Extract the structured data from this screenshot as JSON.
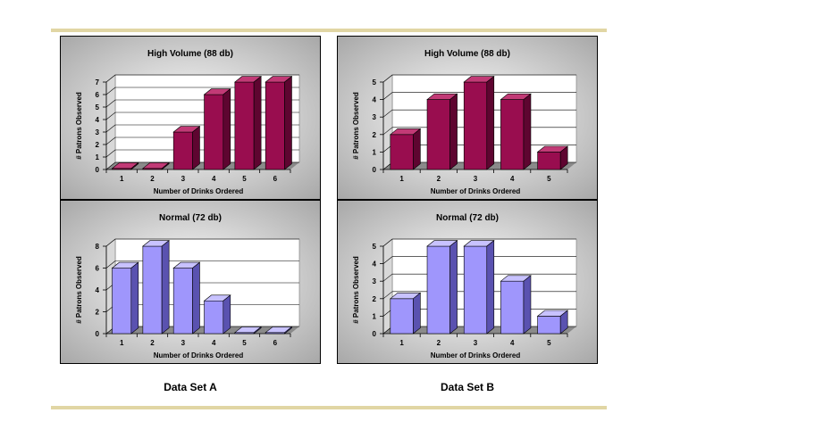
{
  "colors": {
    "rule": "#e1d6a4",
    "high_front": "#990d4f",
    "high_top": "#c23a76",
    "high_side": "#5e0530",
    "normal_front": "#9f96fc",
    "normal_top": "#c8c2ff",
    "normal_side": "#5a52b0"
  },
  "captions": {
    "set_a": "Data Set A",
    "set_b": "Data Set B"
  },
  "chart_data": [
    {
      "type": "bar",
      "set": "Data Set A",
      "panel": "top",
      "title": "High Volume (88 db)",
      "xlabel": "Number of Drinks Ordered",
      "ylabel": "# Patrons Observed",
      "categories": [
        "1",
        "2",
        "3",
        "4",
        "5",
        "6"
      ],
      "values": [
        0,
        0,
        3,
        6,
        7,
        7
      ],
      "ylim": [
        0,
        7
      ],
      "yticks": [
        0,
        1,
        2,
        3,
        4,
        5,
        6,
        7
      ],
      "style": "high",
      "grid": true
    },
    {
      "type": "bar",
      "set": "Data Set A",
      "panel": "bottom",
      "title": "Normal (72 db)",
      "xlabel": "Number of Drinks Ordered",
      "ylabel": "# Patrons Observed",
      "categories": [
        "1",
        "2",
        "3",
        "4",
        "5",
        "6"
      ],
      "values": [
        6,
        8,
        6,
        3,
        0,
        0
      ],
      "ylim": [
        0,
        8
      ],
      "yticks": [
        0,
        2,
        4,
        6,
        8
      ],
      "style": "normal",
      "grid": true
    },
    {
      "type": "bar",
      "set": "Data Set B",
      "panel": "top",
      "title": "High Volume (88 db)",
      "xlabel": "Number of Drinks Ordered",
      "ylabel": "# Patrons Observed",
      "categories": [
        "1",
        "2",
        "3",
        "4",
        "5"
      ],
      "values": [
        2,
        4,
        5,
        4,
        1
      ],
      "ylim": [
        0,
        5
      ],
      "yticks": [
        0,
        1,
        2,
        3,
        4,
        5
      ],
      "style": "high",
      "grid": true
    },
    {
      "type": "bar",
      "set": "Data Set B",
      "panel": "bottom",
      "title": "Normal (72 db)",
      "xlabel": "Number of Drinks Ordered",
      "ylabel": "# Patrons Observed",
      "categories": [
        "1",
        "2",
        "3",
        "4",
        "5"
      ],
      "values": [
        2,
        5,
        5,
        3,
        1
      ],
      "ylim": [
        0,
        5
      ],
      "yticks": [
        0,
        1,
        2,
        3,
        4,
        5
      ],
      "style": "normal",
      "grid": true
    }
  ]
}
